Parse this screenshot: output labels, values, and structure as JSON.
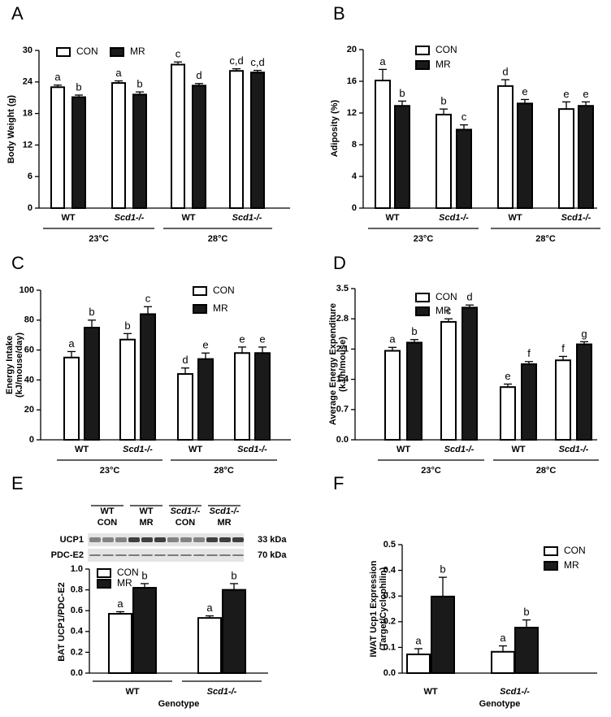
{
  "chart_data": [
    {
      "type": "bar",
      "panel": "A",
      "ylabel": [
        "Body Weight (g)"
      ],
      "categories": [
        "WT",
        "Scd1-/-",
        "WT",
        "Scd1-/-"
      ],
      "groups": [
        "23°C",
        "28°C"
      ],
      "ylim": [
        0,
        30
      ],
      "yticks": [
        0,
        6,
        12,
        18,
        24,
        30
      ],
      "series": [
        {
          "name": "CON",
          "color": "#ffffff",
          "values": [
            23.0,
            23.8,
            27.3,
            26.1
          ],
          "errors": [
            0.4,
            0.4,
            0.5,
            0.4
          ],
          "labels": [
            "a",
            "a",
            "c",
            "c,d"
          ]
        },
        {
          "name": "MR",
          "color": "#1a1a1a",
          "values": [
            21.1,
            21.6,
            23.3,
            25.8
          ],
          "errors": [
            0.4,
            0.5,
            0.4,
            0.4
          ],
          "labels": [
            "b",
            "b",
            "d",
            "c,d"
          ]
        }
      ]
    },
    {
      "type": "bar",
      "panel": "B",
      "ylabel": [
        "Adiposity (%)"
      ],
      "categories": [
        "WT",
        "Scd1-/-",
        "WT",
        "Scd1-/-"
      ],
      "groups": [
        "23°C",
        "28°C"
      ],
      "ylim": [
        0,
        20
      ],
      "yticks": [
        0,
        4,
        8,
        12,
        16,
        20
      ],
      "series": [
        {
          "name": "CON",
          "color": "#ffffff",
          "values": [
            16.1,
            11.8,
            15.4,
            12.5
          ],
          "errors": [
            1.4,
            0.7,
            0.8,
            0.9
          ],
          "labels": [
            "a",
            "b",
            "d",
            "e"
          ]
        },
        {
          "name": "MR",
          "color": "#1a1a1a",
          "values": [
            12.9,
            9.9,
            13.2,
            12.9
          ],
          "errors": [
            0.6,
            0.6,
            0.5,
            0.5
          ],
          "labels": [
            "b",
            "c",
            "e",
            "e"
          ]
        }
      ]
    },
    {
      "type": "bar",
      "panel": "C",
      "ylabel": [
        "Energy Intake",
        "(kJ/mouse/day)"
      ],
      "categories": [
        "WT",
        "Scd1-/-",
        "WT",
        "Scd1-/-"
      ],
      "groups": [
        "23°C",
        "28°C"
      ],
      "ylim": [
        0,
        100
      ],
      "yticks": [
        0,
        20,
        40,
        60,
        80,
        100
      ],
      "series": [
        {
          "name": "CON",
          "color": "#ffffff",
          "values": [
            55,
            67,
            44,
            58
          ],
          "errors": [
            4,
            4,
            4,
            4
          ],
          "labels": [
            "a",
            "b",
            "d",
            "e"
          ]
        },
        {
          "name": "MR",
          "color": "#1a1a1a",
          "values": [
            75,
            84,
            54,
            58
          ],
          "errors": [
            5,
            5,
            4,
            4
          ],
          "labels": [
            "b",
            "c",
            "e",
            "e"
          ]
        }
      ]
    },
    {
      "type": "bar",
      "panel": "D",
      "ylabel": [
        "Average Energy Expenditure",
        "(kJ/h/mouse)"
      ],
      "categories": [
        "WT",
        "Scd1-/-",
        "WT",
        "Scd1-/-"
      ],
      "groups": [
        "23°C",
        "28°C"
      ],
      "ylim": [
        0,
        3.5
      ],
      "yticks": [
        {
          "value": 0,
          "label": "0.0"
        },
        0.7,
        1.4,
        2.1,
        2.8,
        3.5
      ],
      "series": [
        {
          "name": "CON",
          "color": "#ffffff",
          "values": [
            2.06,
            2.73,
            1.22,
            1.84
          ],
          "errors": [
            0.08,
            0.07,
            0.07,
            0.09
          ],
          "labels": [
            "a",
            "c",
            "e",
            "f"
          ]
        },
        {
          "name": "MR",
          "color": "#1a1a1a",
          "values": [
            2.25,
            3.06,
            1.75,
            2.21
          ],
          "errors": [
            0.07,
            0.06,
            0.06,
            0.06
          ],
          "labels": [
            "b",
            "d",
            "f",
            "g"
          ]
        }
      ]
    },
    {
      "type": "bar",
      "panel": "E",
      "ylabel": [
        "BAT UCP1/PDC-E2"
      ],
      "xlabel": "Genotype",
      "categories": [
        "WT",
        "Scd1-/-"
      ],
      "ylim": [
        0,
        1.0
      ],
      "yticks": [
        {
          "value": 0,
          "label": "0.0"
        },
        0.2,
        0.4,
        0.6,
        0.8,
        {
          "value": 1.0,
          "label": "1.0"
        }
      ],
      "series": [
        {
          "name": "CON",
          "color": "#ffffff",
          "values": [
            0.57,
            0.53
          ],
          "errors": [
            0.02,
            0.02
          ],
          "labels": [
            "a",
            "a"
          ]
        },
        {
          "name": "MR",
          "color": "#1a1a1a",
          "values": [
            0.82,
            0.8
          ],
          "errors": [
            0.04,
            0.06
          ],
          "labels": [
            "b",
            "b"
          ]
        }
      ],
      "blot": {
        "lanes": [
          {
            "genotype": "WT",
            "treatment": "CON"
          },
          {
            "genotype": "WT",
            "treatment": "MR"
          },
          {
            "genotype": "Scd1-/-",
            "treatment": "CON"
          },
          {
            "genotype": "Scd1-/-",
            "treatment": "MR"
          }
        ],
        "proteins": [
          {
            "name": "UCP1",
            "size": "33 kDa"
          },
          {
            "name": "PDC-E2",
            "size": "70 kDa"
          }
        ]
      }
    },
    {
      "type": "bar",
      "panel": "F",
      "ylabel": [
        "IWAT Ucp1 Expression",
        "(Target/Cyclophilin)"
      ],
      "xlabel": "Genotype",
      "categories": [
        "WT",
        "Scd1-/-"
      ],
      "ylim": [
        0,
        0.5
      ],
      "yticks": [
        {
          "value": 0,
          "label": "0.0"
        },
        0.1,
        0.2,
        0.3,
        0.4,
        0.5
      ],
      "series": [
        {
          "name": "CON",
          "color": "#ffffff",
          "values": [
            0.073,
            0.083
          ],
          "errors": [
            0.022,
            0.023
          ],
          "labels": [
            "a",
            "a"
          ]
        },
        {
          "name": "MR",
          "color": "#1a1a1a",
          "values": [
            0.298,
            0.177
          ],
          "errors": [
            0.075,
            0.03
          ],
          "labels": [
            "b",
            "b"
          ]
        }
      ]
    }
  ]
}
